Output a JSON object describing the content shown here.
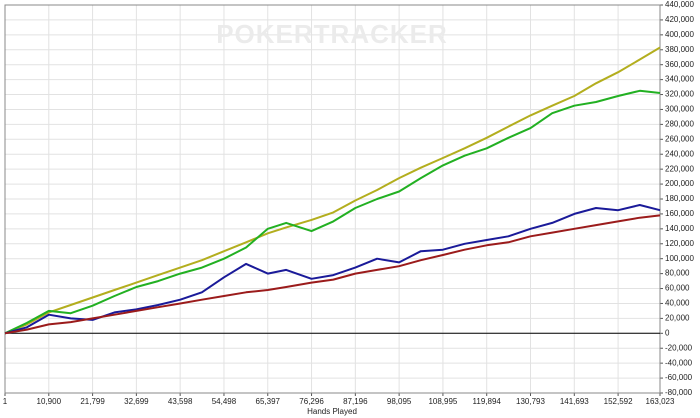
{
  "chart_data": {
    "type": "line",
    "watermark": "POKERTRACKER",
    "x_label": "Hands Played",
    "x": [
      1,
      5450,
      10900,
      16350,
      21799,
      27250,
      32699,
      38100,
      43598,
      49000,
      54498,
      60000,
      65397,
      70000,
      76296,
      81700,
      87196,
      92600,
      98095,
      103500,
      108995,
      114400,
      119894,
      125300,
      130793,
      136200,
      141693,
      147100,
      152592,
      158000,
      163023
    ],
    "series": [
      {
        "color": "#b3ae1e",
        "values": [
          0,
          12000,
          28000,
          38000,
          48000,
          58000,
          68000,
          78000,
          88000,
          98000,
          110000,
          122000,
          134000,
          142000,
          152000,
          162000,
          178000,
          192000,
          208000,
          222000,
          235000,
          248000,
          262000,
          277000,
          292000,
          305000,
          318000,
          335000,
          350000,
          367000,
          383000
        ]
      },
      {
        "color": "#22b022",
        "values": [
          0,
          14000,
          30000,
          27000,
          37000,
          50000,
          62000,
          70000,
          80000,
          88000,
          100000,
          115000,
          140000,
          148000,
          137000,
          150000,
          168000,
          180000,
          190000,
          208000,
          225000,
          238000,
          248000,
          262000,
          275000,
          295000,
          305000,
          310000,
          318000,
          325000,
          322000
        ]
      },
      {
        "color": "#1a1a99",
        "values": [
          0,
          8000,
          25000,
          20000,
          18000,
          28000,
          32000,
          38000,
          45000,
          55000,
          75000,
          93000,
          80000,
          85000,
          73000,
          78000,
          88000,
          100000,
          95000,
          110000,
          112000,
          120000,
          125000,
          130000,
          140000,
          148000,
          160000,
          168000,
          165000,
          172000,
          165000
        ]
      },
      {
        "color": "#9b1b1b",
        "values": [
          0,
          5000,
          12000,
          15000,
          20000,
          25000,
          30000,
          35000,
          40000,
          45000,
          50000,
          55000,
          58000,
          62000,
          68000,
          72000,
          80000,
          85000,
          90000,
          98000,
          105000,
          112000,
          118000,
          122000,
          130000,
          135000,
          140000,
          145000,
          150000,
          155000,
          158000
        ]
      }
    ],
    "xlim": [
      1,
      163023
    ],
    "xticks": [
      1,
      {
        "value": 10900,
        "label": "10,900"
      },
      {
        "value": 21799,
        "label": "21,799"
      },
      {
        "value": 32699,
        "label": "32,699"
      },
      {
        "value": 43598,
        "label": "43,598"
      },
      {
        "value": 54498,
        "label": "54,498"
      },
      {
        "value": 65397,
        "label": "65,397"
      },
      {
        "value": 76296,
        "label": "76,296"
      },
      {
        "value": 87196,
        "label": "87,196"
      },
      {
        "value": 98095,
        "label": "98,095"
      },
      {
        "value": 108995,
        "label": "108,995"
      },
      {
        "value": 119894,
        "label": "119,894"
      },
      {
        "value": 130793,
        "label": "130,793"
      },
      {
        "value": 141693,
        "label": "141,693"
      },
      {
        "value": 152592,
        "label": "152,592"
      },
      {
        "value": 163023,
        "label": "163,023"
      }
    ],
    "ylim": [
      -80000,
      440000
    ],
    "yticks": [
      {
        "value": -80000,
        "label": "-80,000"
      },
      {
        "value": -60000,
        "label": "-60,000"
      },
      {
        "value": -40000,
        "label": "-40,000"
      },
      {
        "value": -20000,
        "label": "-20,000"
      },
      0,
      {
        "value": 20000,
        "label": "20,000"
      },
      {
        "value": 40000,
        "label": "40,000"
      },
      {
        "value": 60000,
        "label": "60,000"
      },
      {
        "value": 80000,
        "label": "80,000"
      },
      {
        "value": 100000,
        "label": "100,000"
      },
      {
        "value": 120000,
        "label": "120,000"
      },
      {
        "value": 140000,
        "label": "140,000"
      },
      {
        "value": 160000,
        "label": "160,000"
      },
      {
        "value": 180000,
        "label": "180,000"
      },
      {
        "value": 200000,
        "label": "200,000"
      },
      {
        "value": 220000,
        "label": "220,000"
      },
      {
        "value": 240000,
        "label": "240,000"
      },
      {
        "value": 260000,
        "label": "260,000"
      },
      {
        "value": 280000,
        "label": "280,000"
      },
      {
        "value": 300000,
        "label": "300,000"
      },
      {
        "value": 320000,
        "label": "320,000"
      },
      {
        "value": 340000,
        "label": "340,000"
      },
      {
        "value": 360000,
        "label": "360,000"
      },
      {
        "value": 380000,
        "label": "380,000"
      },
      {
        "value": 400000,
        "label": "400,000"
      },
      {
        "value": 420000,
        "label": "420,000"
      },
      {
        "value": 440000,
        "label": "440,000"
      }
    ],
    "grid": true,
    "y_axis_side": "right"
  }
}
